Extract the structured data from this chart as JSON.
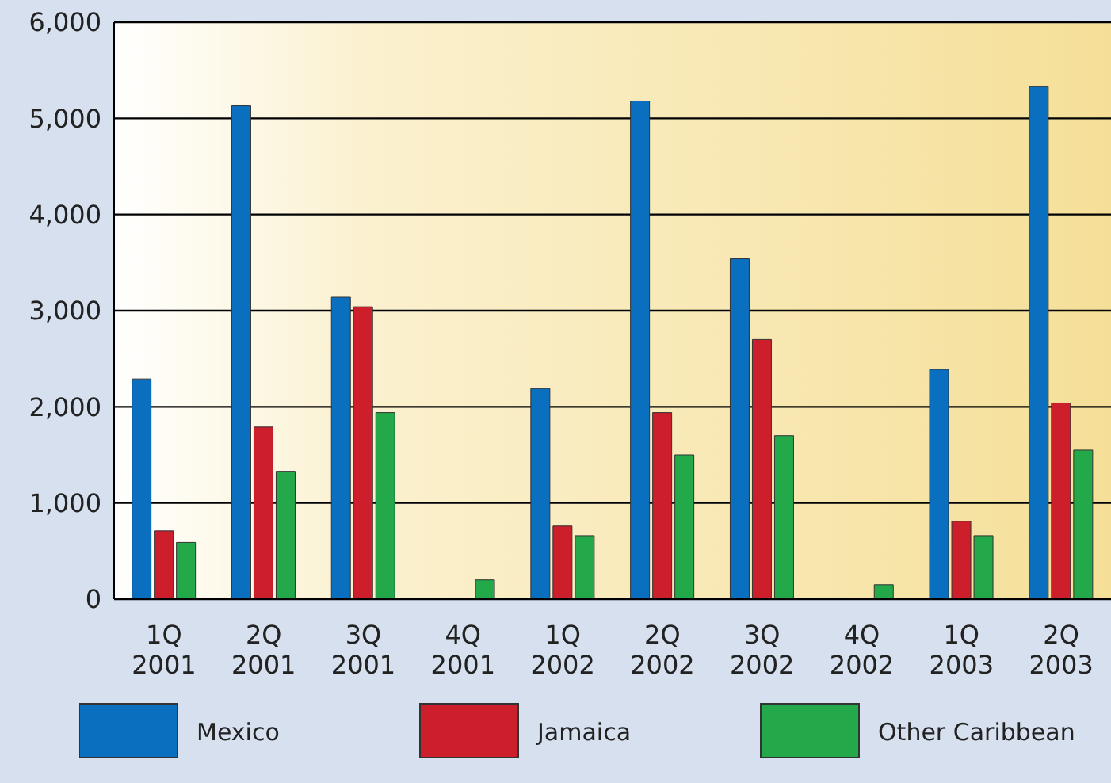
{
  "chart_data": {
    "type": "bar",
    "categories": [
      "1Q\n2001",
      "2Q\n2001",
      "3Q\n2001",
      "4Q\n2001",
      "1Q\n2002",
      "2Q\n2002",
      "3Q\n2002",
      "4Q\n2002",
      "1Q\n2003",
      "2Q\n2003"
    ],
    "series": [
      {
        "name": "Mexico",
        "color": "#0a6fbf",
        "values": [
          2290,
          5130,
          3140,
          0,
          2190,
          5180,
          3540,
          0,
          2390,
          5330
        ]
      },
      {
        "name": "Jamaica",
        "color": "#cc1f2b",
        "values": [
          710,
          1790,
          3040,
          0,
          760,
          1940,
          2700,
          0,
          810,
          2040
        ]
      },
      {
        "name": "Other Caribbean",
        "color": "#23a84a",
        "values": [
          590,
          1330,
          1940,
          200,
          660,
          1500,
          1700,
          150,
          660,
          1550
        ]
      }
    ],
    "ylim": [
      0,
      6000
    ],
    "yticks": [
      {
        "value": 0,
        "label": "0"
      },
      {
        "value": 1000,
        "label": "1,000"
      },
      {
        "value": 2000,
        "label": "2,000"
      },
      {
        "value": 3000,
        "label": "3,000"
      },
      {
        "value": 4000,
        "label": "4,000"
      },
      {
        "value": 5000,
        "label": "5,000"
      },
      {
        "value": 6000,
        "label": "6,000"
      }
    ],
    "grid": "y",
    "legend": "bottom"
  }
}
